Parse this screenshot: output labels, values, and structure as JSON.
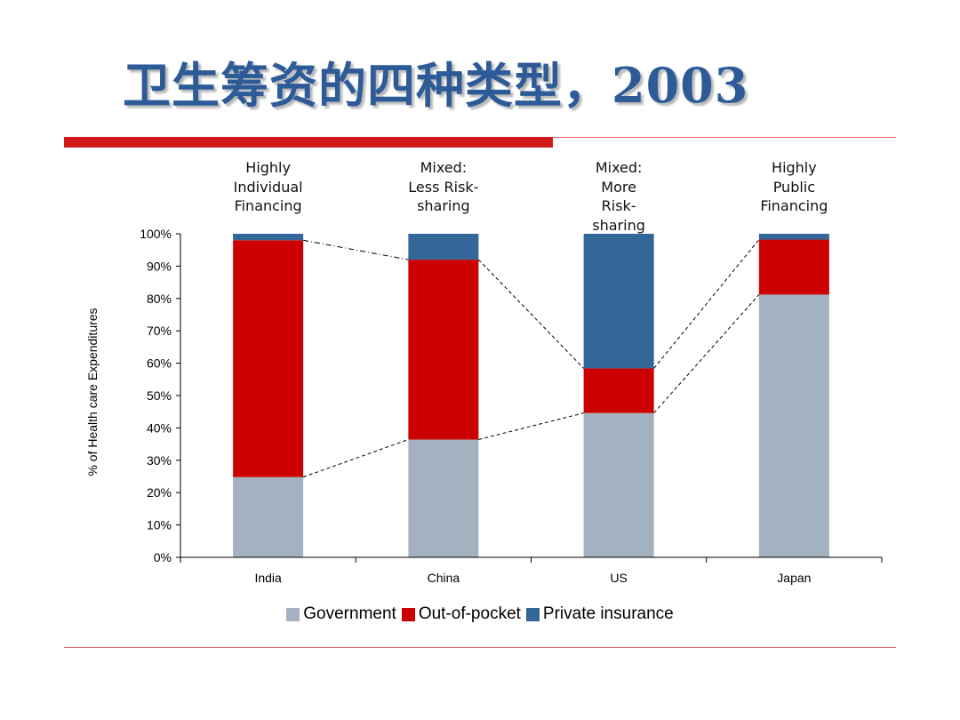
{
  "slide": {
    "title": "卫生筹资的四种类型，2003"
  },
  "colors": {
    "government": "#a3b1c1",
    "out_of_pocket": "#cc0000",
    "private_insurance": "#336699",
    "accent_red": "#d11a1a"
  },
  "chart_data": {
    "type": "bar",
    "stacked": true,
    "categories": [
      "India",
      "China",
      "US",
      "Japan"
    ],
    "category_headers": [
      [
        "Highly",
        "Individual",
        "Financing"
      ],
      [
        "Mixed:",
        "Less Risk-",
        "sharing"
      ],
      [
        "Mixed:",
        "More",
        "Risk-",
        "sharing"
      ],
      [
        "Highly",
        "Public",
        "Financing"
      ]
    ],
    "series": [
      {
        "name": "Government",
        "values": [
          24.8,
          36.4,
          44.6,
          81.2
        ]
      },
      {
        "name": "Out-of-pocket",
        "values": [
          73.2,
          55.6,
          13.8,
          17.0
        ]
      },
      {
        "name": "Private insurance",
        "values": [
          2.0,
          8.0,
          41.6,
          1.8
        ]
      }
    ],
    "ylabel": "% of Health care Expenditures",
    "xlabel": "",
    "ylim": [
      0,
      100
    ],
    "yticks": [
      "0%",
      "10%",
      "20%",
      "30%",
      "40%",
      "50%",
      "60%",
      "70%",
      "80%",
      "90%",
      "100%"
    ],
    "grid": false,
    "legend_position": "bottom"
  }
}
